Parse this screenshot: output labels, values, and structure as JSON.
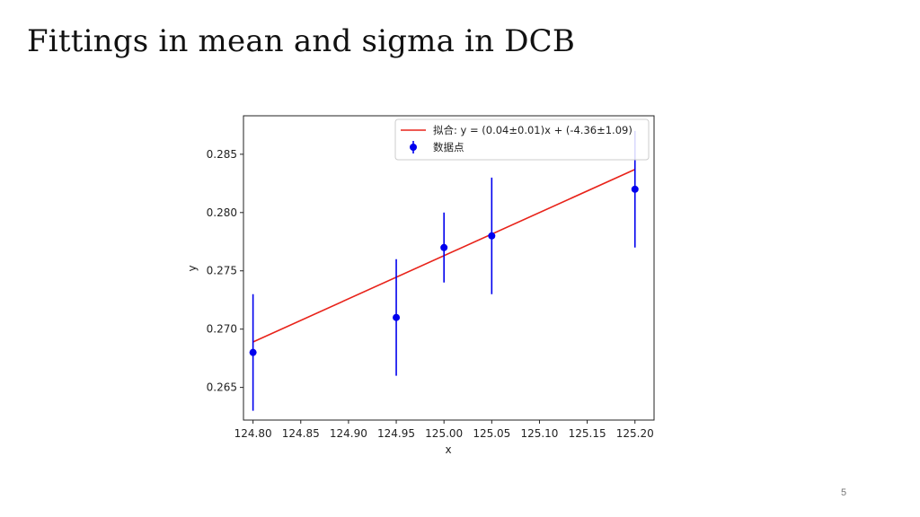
{
  "slide": {
    "title": "Fittings in mean and sigma in DCB",
    "page_number": "5"
  },
  "chart_data": {
    "type": "scatter",
    "xlabel": "x",
    "ylabel": "y",
    "xlim": [
      124.79,
      125.22
    ],
    "ylim": [
      0.2622,
      0.2883
    ],
    "x_ticks": [
      124.8,
      124.85,
      124.9,
      124.95,
      125.0,
      125.05,
      125.1,
      125.15,
      125.2
    ],
    "x_tick_labels": [
      "124.80",
      "124.85",
      "124.90",
      "124.95",
      "125.00",
      "125.05",
      "125.10",
      "125.15",
      "125.20"
    ],
    "y_ticks": [
      0.265,
      0.27,
      0.275,
      0.28,
      0.285
    ],
    "y_tick_labels": [
      "0.265",
      "0.270",
      "0.275",
      "0.280",
      "0.285"
    ],
    "grid": false,
    "legend_position": "top-right",
    "series": [
      {
        "name": "拟合: y = (0.04±0.01)x + (-4.36±1.09)",
        "kind": "line",
        "color": "#e8231a",
        "x": [
          124.8,
          125.2
        ],
        "y": [
          0.2689,
          0.2837
        ]
      },
      {
        "name": "数据点",
        "kind": "errorbar",
        "color": "#0000ee",
        "x": [
          124.8,
          124.95,
          125.0,
          125.05,
          125.2
        ],
        "y": [
          0.268,
          0.271,
          0.277,
          0.278,
          0.282
        ],
        "yerr": [
          0.005,
          0.005,
          0.003,
          0.005,
          0.005
        ]
      }
    ]
  }
}
